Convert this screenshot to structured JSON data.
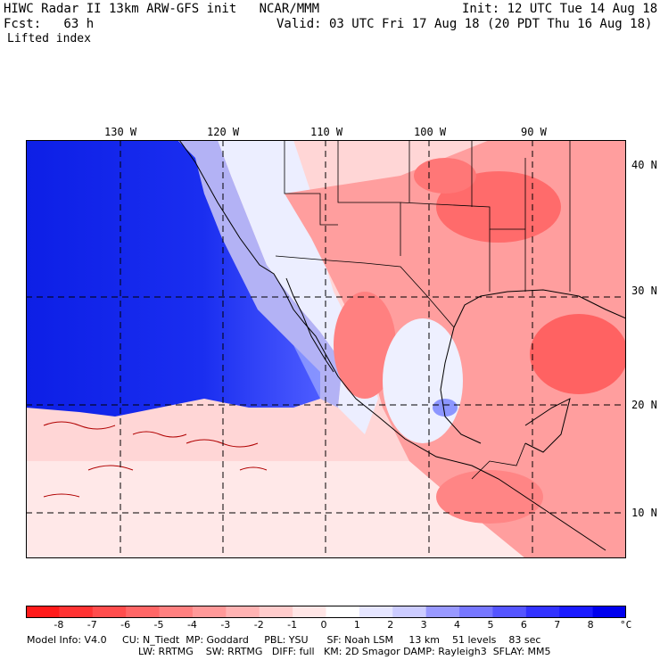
{
  "header": {
    "line1_left": "HIWC Radar II 13km ARW-GFS init   NCAR/MMM",
    "line1_right": "Init: 12 UTC Tue 14 Aug 18",
    "line2_left": "Fcst:   63 h",
    "line2_right": "Valid: 03 UTC Fri 17 Aug 18 (20 PDT Thu 16 Aug 18)",
    "field_name": "Lifted index"
  },
  "map": {
    "lon_labels": [
      "130 W",
      "120 W",
      "110 W",
      "100 W",
      "90 W"
    ],
    "lat_labels": [
      "40 N",
      "30 N",
      "20 N",
      "10 N"
    ]
  },
  "colorbar": {
    "ticks": [
      "-8",
      "-7",
      "-6",
      "-5",
      "-4",
      "-3",
      "-2",
      "-1",
      "0",
      "1",
      "2",
      "3",
      "4",
      "5",
      "6",
      "7",
      "8"
    ],
    "unit": "°C",
    "colors": [
      "#ff1a1a",
      "#ff3333",
      "#ff4d4d",
      "#ff6666",
      "#ff8080",
      "#ff9999",
      "#ffb3b3",
      "#ffcccc",
      "#ffe6e6",
      "#ffffff",
      "#e6e6ff",
      "#ccccff",
      "#9999ff",
      "#7777ff",
      "#5555ff",
      "#3333ff",
      "#1a1aff",
      "#0000ee"
    ]
  },
  "footer": {
    "line1": "Model Info: V4.0     CU: N_Tiedt  MP: Goddard     PBL: YSU      SF: Noah LSM     13 km    51 levels    83 sec",
    "line2": "LW: RRTMG    SW: RRTMG   DIFF: full   KM: 2D Smagor DAMP: Rayleigh3  SFLAY: MM5"
  }
}
